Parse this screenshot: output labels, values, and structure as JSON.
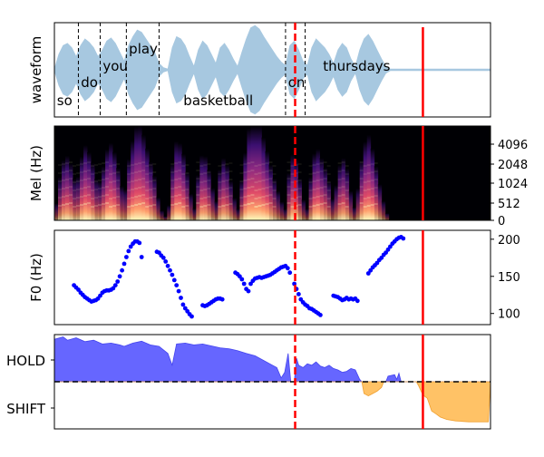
{
  "chart_data": [
    {
      "type": "area",
      "panel": "waveform",
      "ylabel": "waveform",
      "waveform_color": "#a7c8e0",
      "word_boundaries": [
        0.55,
        1.05,
        1.65,
        2.4,
        5.3,
        5.75
      ],
      "words": [
        {
          "text": "so",
          "t": 0.1,
          "level": "low"
        },
        {
          "text": "do",
          "t": 0.65,
          "level": "mid"
        },
        {
          "text": "you",
          "t": 1.15,
          "level": "upper"
        },
        {
          "text": "play",
          "t": 1.75,
          "level": "high"
        },
        {
          "text": "basketball",
          "t": 3.0,
          "level": "low"
        },
        {
          "text": "on",
          "t": 5.4,
          "level": "mid"
        },
        {
          "text": "thursdays",
          "t": 6.2,
          "level": "upper"
        }
      ],
      "envelope": [
        [
          0.0,
          0.02
        ],
        [
          0.1,
          0.35
        ],
        [
          0.2,
          0.55
        ],
        [
          0.3,
          0.6
        ],
        [
          0.4,
          0.5
        ],
        [
          0.5,
          0.3
        ],
        [
          0.6,
          0.55
        ],
        [
          0.7,
          0.7
        ],
        [
          0.8,
          0.62
        ],
        [
          0.9,
          0.5
        ],
        [
          1.0,
          0.3
        ],
        [
          1.1,
          0.45
        ],
        [
          1.2,
          0.65
        ],
        [
          1.3,
          0.72
        ],
        [
          1.4,
          0.6
        ],
        [
          1.5,
          0.4
        ],
        [
          1.6,
          0.2
        ],
        [
          1.7,
          0.55
        ],
        [
          1.8,
          0.75
        ],
        [
          1.9,
          0.9
        ],
        [
          2.0,
          0.85
        ],
        [
          2.1,
          0.7
        ],
        [
          2.2,
          0.55
        ],
        [
          2.3,
          0.4
        ],
        [
          2.4,
          0.15
        ],
        [
          2.5,
          0.05
        ],
        [
          2.6,
          0.02
        ],
        [
          2.7,
          0.5
        ],
        [
          2.8,
          0.75
        ],
        [
          2.9,
          0.7
        ],
        [
          3.0,
          0.55
        ],
        [
          3.1,
          0.3
        ],
        [
          3.2,
          0.08
        ],
        [
          3.3,
          0.45
        ],
        [
          3.4,
          0.65
        ],
        [
          3.5,
          0.55
        ],
        [
          3.6,
          0.35
        ],
        [
          3.7,
          0.15
        ],
        [
          3.8,
          0.5
        ],
        [
          3.9,
          0.6
        ],
        [
          4.0,
          0.45
        ],
        [
          4.1,
          0.25
        ],
        [
          4.2,
          0.08
        ],
        [
          4.3,
          0.4
        ],
        [
          4.4,
          0.7
        ],
        [
          4.5,
          0.95
        ],
        [
          4.6,
          1.0
        ],
        [
          4.7,
          0.92
        ],
        [
          4.8,
          0.75
        ],
        [
          4.9,
          0.6
        ],
        [
          5.0,
          0.45
        ],
        [
          5.1,
          0.3
        ],
        [
          5.2,
          0.18
        ],
        [
          5.3,
          0.1
        ],
        [
          5.4,
          0.55
        ],
        [
          5.5,
          0.65
        ],
        [
          5.6,
          0.45
        ],
        [
          5.7,
          0.2
        ],
        [
          5.8,
          0.1
        ],
        [
          5.9,
          0.5
        ],
        [
          6.0,
          0.7
        ],
        [
          6.1,
          0.6
        ],
        [
          6.2,
          0.5
        ],
        [
          6.3,
          0.35
        ],
        [
          6.4,
          0.15
        ],
        [
          6.5,
          0.45
        ],
        [
          6.6,
          0.6
        ],
        [
          6.7,
          0.5
        ],
        [
          6.8,
          0.25
        ],
        [
          6.9,
          0.08
        ],
        [
          7.0,
          0.45
        ],
        [
          7.1,
          0.7
        ],
        [
          7.2,
          0.8
        ],
        [
          7.3,
          0.65
        ],
        [
          7.4,
          0.45
        ],
        [
          7.5,
          0.25
        ],
        [
          7.6,
          0.08
        ],
        [
          7.7,
          0.02
        ],
        [
          10.0,
          0.02
        ]
      ]
    },
    {
      "type": "heatmap",
      "panel": "mel",
      "ylabel": "Mel (Hz)",
      "yticks": [
        "0",
        "512",
        "1024",
        "2048",
        "4096"
      ],
      "colormap": [
        "#000004",
        "#3b0f70",
        "#8c2981",
        "#de4968",
        "#fe9f6d",
        "#fcfdbf"
      ],
      "speech_end_t": 7.7
    },
    {
      "type": "scatter",
      "panel": "f0",
      "ylabel": "F0 (Hz)",
      "ylim": [
        85,
        212
      ],
      "yticks": [
        100,
        150,
        200
      ],
      "color": "#0000ff",
      "points": [
        [
          0.45,
          138
        ],
        [
          0.5,
          135
        ],
        [
          0.55,
          132
        ],
        [
          0.6,
          128
        ],
        [
          0.65,
          125
        ],
        [
          0.7,
          122
        ],
        [
          0.75,
          120
        ],
        [
          0.8,
          118
        ],
        [
          0.85,
          116
        ],
        [
          0.9,
          117
        ],
        [
          0.95,
          118
        ],
        [
          1.0,
          120
        ],
        [
          1.05,
          124
        ],
        [
          1.1,
          128
        ],
        [
          1.15,
          130
        ],
        [
          1.2,
          131
        ],
        [
          1.25,
          131
        ],
        [
          1.3,
          132
        ],
        [
          1.35,
          134
        ],
        [
          1.4,
          138
        ],
        [
          1.45,
          143
        ],
        [
          1.5,
          150
        ],
        [
          1.55,
          158
        ],
        [
          1.6,
          167
        ],
        [
          1.65,
          176
        ],
        [
          1.7,
          184
        ],
        [
          1.75,
          190
        ],
        [
          1.8,
          194
        ],
        [
          1.85,
          197
        ],
        [
          1.9,
          197
        ],
        [
          1.95,
          195
        ],
        [
          2.0,
          176
        ],
        [
          2.35,
          183
        ],
        [
          2.4,
          182
        ],
        [
          2.45,
          178
        ],
        [
          2.5,
          175
        ],
        [
          2.55,
          170
        ],
        [
          2.6,
          164
        ],
        [
          2.65,
          158
        ],
        [
          2.7,
          152
        ],
        [
          2.75,
          145
        ],
        [
          2.8,
          138
        ],
        [
          2.85,
          130
        ],
        [
          2.9,
          121
        ],
        [
          2.95,
          112
        ],
        [
          3.0,
          107
        ],
        [
          3.05,
          103
        ],
        [
          3.1,
          99
        ],
        [
          3.15,
          96
        ],
        [
          3.4,
          111
        ],
        [
          3.45,
          110
        ],
        [
          3.5,
          111
        ],
        [
          3.55,
          113
        ],
        [
          3.6,
          115
        ],
        [
          3.65,
          117
        ],
        [
          3.7,
          119
        ],
        [
          3.75,
          120
        ],
        [
          3.8,
          120
        ],
        [
          3.85,
          119
        ],
        [
          4.15,
          155
        ],
        [
          4.2,
          153
        ],
        [
          4.25,
          150
        ],
        [
          4.3,
          146
        ],
        [
          4.35,
          140
        ],
        [
          4.4,
          133
        ],
        [
          4.45,
          130
        ],
        [
          4.5,
          140
        ],
        [
          4.55,
          144
        ],
        [
          4.6,
          147
        ],
        [
          4.65,
          148
        ],
        [
          4.7,
          149
        ],
        [
          4.75,
          148
        ],
        [
          4.8,
          149
        ],
        [
          4.85,
          150
        ],
        [
          4.9,
          151
        ],
        [
          4.95,
          152
        ],
        [
          5.0,
          154
        ],
        [
          5.05,
          156
        ],
        [
          5.1,
          158
        ],
        [
          5.15,
          160
        ],
        [
          5.2,
          162
        ],
        [
          5.25,
          163
        ],
        [
          5.3,
          164
        ],
        [
          5.35,
          161
        ],
        [
          5.4,
          155
        ],
        [
          5.5,
          140
        ],
        [
          5.55,
          133
        ],
        [
          5.6,
          126
        ],
        [
          5.65,
          119
        ],
        [
          5.7,
          115
        ],
        [
          5.75,
          112
        ],
        [
          5.8,
          110
        ],
        [
          5.85,
          107
        ],
        [
          5.9,
          106
        ],
        [
          5.95,
          104
        ],
        [
          6.0,
          102
        ],
        [
          6.05,
          100
        ],
        [
          6.1,
          98
        ],
        [
          6.4,
          124
        ],
        [
          6.45,
          123
        ],
        [
          6.5,
          122
        ],
        [
          6.55,
          120
        ],
        [
          6.6,
          118
        ],
        [
          6.65,
          119
        ],
        [
          6.7,
          121
        ],
        [
          6.75,
          119
        ],
        [
          6.8,
          120
        ],
        [
          6.85,
          119
        ],
        [
          6.9,
          120
        ],
        [
          6.95,
          117
        ],
        [
          7.2,
          154
        ],
        [
          7.25,
          158
        ],
        [
          7.3,
          162
        ],
        [
          7.35,
          165
        ],
        [
          7.4,
          168
        ],
        [
          7.45,
          172
        ],
        [
          7.5,
          175
        ],
        [
          7.55,
          179
        ],
        [
          7.6,
          182
        ],
        [
          7.65,
          186
        ],
        [
          7.7,
          190
        ],
        [
          7.75,
          194
        ],
        [
          7.8,
          197
        ],
        [
          7.85,
          200
        ],
        [
          7.9,
          202
        ],
        [
          7.95,
          203
        ],
        [
          8.0,
          201
        ]
      ]
    },
    {
      "type": "area",
      "panel": "turn-taking",
      "yticks": [
        "HOLD",
        "SHIFT"
      ],
      "hold_color": "#6666ff",
      "shift_color": "#ffc266",
      "hold_curve": [
        [
          0.0,
          0.9
        ],
        [
          0.2,
          0.95
        ],
        [
          0.3,
          0.88
        ],
        [
          0.5,
          0.93
        ],
        [
          0.7,
          0.85
        ],
        [
          0.9,
          0.88
        ],
        [
          1.1,
          0.8
        ],
        [
          1.3,
          0.82
        ],
        [
          1.5,
          0.78
        ],
        [
          1.6,
          0.75
        ],
        [
          1.8,
          0.82
        ],
        [
          2.0,
          0.86
        ],
        [
          2.2,
          0.78
        ],
        [
          2.4,
          0.75
        ],
        [
          2.6,
          0.6
        ],
        [
          2.7,
          0.35
        ],
        [
          2.8,
          0.8
        ],
        [
          3.0,
          0.82
        ],
        [
          3.2,
          0.78
        ],
        [
          3.4,
          0.8
        ],
        [
          3.6,
          0.76
        ],
        [
          3.8,
          0.72
        ],
        [
          4.0,
          0.7
        ],
        [
          4.2,
          0.66
        ],
        [
          4.4,
          0.6
        ],
        [
          4.6,
          0.55
        ],
        [
          4.8,
          0.45
        ],
        [
          5.0,
          0.35
        ],
        [
          5.1,
          0.3
        ],
        [
          5.2,
          0.08
        ],
        [
          5.28,
          0.2
        ],
        [
          5.36,
          0.6
        ],
        [
          5.42,
          0.0
        ],
        [
          5.5,
          0.0
        ],
        [
          5.55,
          0.5
        ],
        [
          5.6,
          0.35
        ],
        [
          5.7,
          0.3
        ],
        [
          5.8,
          0.38
        ],
        [
          5.9,
          0.35
        ],
        [
          6.0,
          0.42
        ],
        [
          6.1,
          0.33
        ],
        [
          6.2,
          0.3
        ],
        [
          6.3,
          0.35
        ],
        [
          6.4,
          0.28
        ],
        [
          6.5,
          0.25
        ],
        [
          6.6,
          0.2
        ],
        [
          6.7,
          0.22
        ],
        [
          6.8,
          0.28
        ],
        [
          6.9,
          0.25
        ],
        [
          7.0,
          0.05
        ],
        [
          7.05,
          0.0
        ],
        [
          7.6,
          0.0
        ],
        [
          7.65,
          0.12
        ],
        [
          7.8,
          0.15
        ],
        [
          7.85,
          0.05
        ],
        [
          7.9,
          0.18
        ],
        [
          7.95,
          0.0
        ],
        [
          10.0,
          0.0
        ]
      ],
      "shift_curve": [
        [
          0.0,
          0.0
        ],
        [
          7.0,
          0.0
        ],
        [
          7.05,
          0.0
        ],
        [
          7.1,
          0.25
        ],
        [
          7.2,
          0.3
        ],
        [
          7.3,
          0.25
        ],
        [
          7.4,
          0.2
        ],
        [
          7.5,
          0.12
        ],
        [
          7.55,
          0.0
        ],
        [
          8.3,
          0.0
        ],
        [
          8.35,
          0.08
        ],
        [
          8.45,
          0.28
        ],
        [
          8.55,
          0.35
        ],
        [
          8.65,
          0.62
        ],
        [
          8.75,
          0.68
        ],
        [
          8.85,
          0.75
        ],
        [
          9.0,
          0.8
        ],
        [
          9.2,
          0.83
        ],
        [
          9.5,
          0.85
        ],
        [
          9.8,
          0.85
        ],
        [
          9.95,
          0.85
        ],
        [
          10.0,
          0.0
        ]
      ]
    }
  ],
  "markers": {
    "dashed_t": 5.52,
    "solid_t": 8.45,
    "t_max": 10.0,
    "color": "#ff0000"
  }
}
